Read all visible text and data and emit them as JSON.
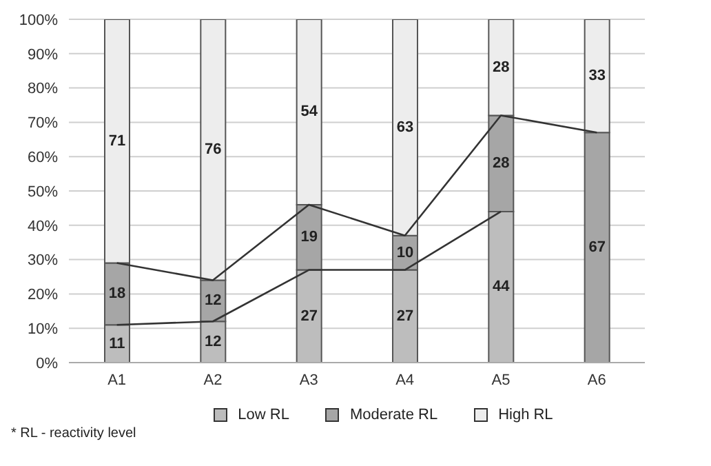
{
  "chart_data": {
    "type": "bar",
    "stacked": true,
    "categories": [
      "A1",
      "A2",
      "A3",
      "A4",
      "A5",
      "A6"
    ],
    "series": [
      {
        "name": "Low RL",
        "color": "#bdbdbd",
        "values": [
          11,
          12,
          27,
          27,
          44,
          0
        ],
        "value_labels": [
          "11",
          "12",
          "27",
          "27",
          "44",
          null
        ]
      },
      {
        "name": "Moderate RL",
        "color": "#a6a6a6",
        "values": [
          18,
          12,
          19,
          10,
          28,
          67
        ],
        "value_labels": [
          "18",
          "12",
          "19",
          "10",
          "28",
          "67"
        ]
      },
      {
        "name": "High RL",
        "color": "#ededed",
        "values": [
          71,
          76,
          54,
          63,
          28,
          33
        ],
        "value_labels": [
          "71",
          "76",
          "54",
          "63",
          "28",
          "33"
        ]
      },
      {
        "type": "line",
        "color": "#333333",
        "values": [
          11,
          12,
          27,
          27,
          44,
          null
        ]
      },
      {
        "type": "line",
        "color": "#333333",
        "values": [
          29,
          24,
          46,
          37,
          72,
          67
        ]
      }
    ],
    "ylim": [
      0,
      100
    ],
    "yticks": [
      {
        "value": 0,
        "label": "0%"
      },
      {
        "value": 10,
        "label": "10%"
      },
      {
        "value": 20,
        "label": "20%"
      },
      {
        "value": 30,
        "label": "30%"
      },
      {
        "value": 40,
        "label": "40%"
      },
      {
        "value": 50,
        "label": "50%"
      },
      {
        "value": 60,
        "label": "60%"
      },
      {
        "value": 70,
        "label": "70%"
      },
      {
        "value": 80,
        "label": "80%"
      },
      {
        "value": 90,
        "label": "90%"
      },
      {
        "value": 100,
        "label": "100%"
      }
    ],
    "grid": "y",
    "legend": "bottom",
    "marker": "none",
    "annotations": [
      "* RL - reactivity level"
    ]
  }
}
